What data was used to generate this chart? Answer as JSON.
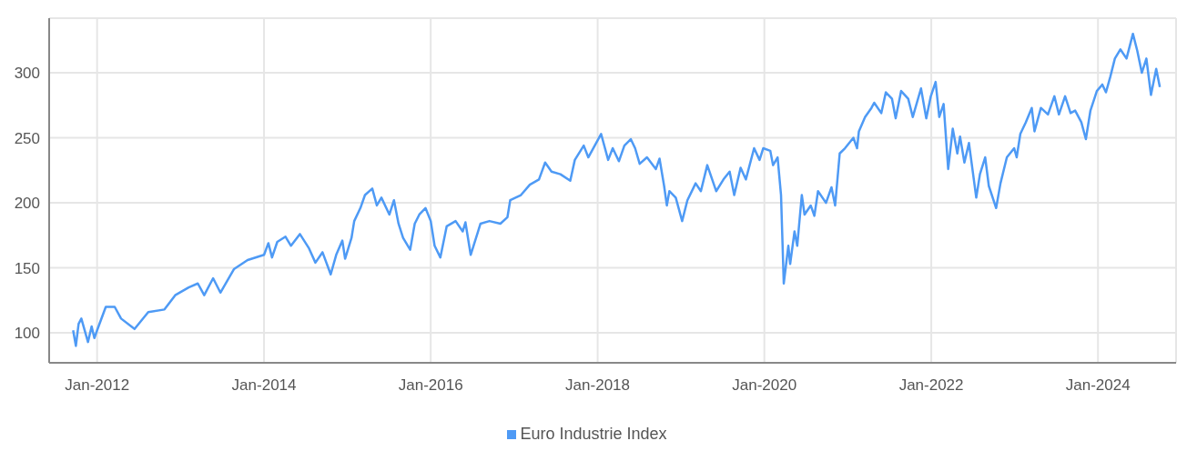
{
  "chart_data": {
    "type": "line",
    "x": [
      "2011-09-18",
      "2011-09-30",
      "2011-10-12",
      "2011-10-24",
      "2011-11-22",
      "2011-12-08",
      "2011-12-20",
      "2012-01-01",
      "2012-02-08",
      "2012-03-18",
      "2012-04-15",
      "2012-06-13",
      "2012-08-12",
      "2012-10-22",
      "2012-12-08",
      "2013-02-05",
      "2013-03-17",
      "2013-04-14",
      "2013-05-23",
      "2013-06-24",
      "2013-08-22",
      "2013-10-21",
      "2014-01-01",
      "2014-01-20",
      "2014-02-05",
      "2014-02-28",
      "2014-04-05",
      "2014-04-29",
      "2014-06-07",
      "2014-07-17",
      "2014-08-14",
      "2014-09-14",
      "2014-10-20",
      "2014-11-13",
      "2014-12-10",
      "2014-12-22",
      "2015-01-19",
      "2015-01-31",
      "2015-02-27",
      "2015-03-19",
      "2015-04-20",
      "2015-05-10",
      "2015-05-30",
      "2015-07-04",
      "2015-07-24",
      "2015-08-13",
      "2015-09-02",
      "2015-10-03",
      "2015-10-23",
      "2015-11-12",
      "2015-12-09",
      "2016-01-01",
      "2016-01-18",
      "2016-02-12",
      "2016-03-11",
      "2016-04-19",
      "2016-05-20",
      "2016-06-01",
      "2016-06-24",
      "2016-08-06",
      "2016-09-14",
      "2016-11-01",
      "2016-12-02",
      "2016-12-14",
      "2017-01-30",
      "2017-03-10",
      "2017-04-19",
      "2017-05-16",
      "2017-06-13",
      "2017-07-22",
      "2017-09-03",
      "2017-09-23",
      "2017-11-01",
      "2017-11-21",
      "2018-01-16",
      "2018-02-16",
      "2018-03-08",
      "2018-04-04",
      "2018-04-28",
      "2018-05-26",
      "2018-06-14",
      "2018-07-04",
      "2018-08-05",
      "2018-09-13",
      "2018-09-29",
      "2018-10-19",
      "2018-10-31",
      "2018-11-11",
      "2018-12-09",
      "2019-01-06",
      "2019-01-29",
      "2019-03-06",
      "2019-03-29",
      "2019-04-26",
      "2019-06-04",
      "2019-07-06",
      "2019-08-02",
      "2019-08-22",
      "2019-09-19",
      "2019-10-12",
      "2019-11-17",
      "2019-12-11",
      "2019-12-27",
      "2020-01-27",
      "2020-02-08",
      "2020-02-28",
      "2020-03-14",
      "2020-03-26",
      "2020-04-15",
      "2020-04-23",
      "2020-05-12",
      "2020-05-24",
      "2020-06-13",
      "2020-06-25",
      "2020-07-22",
      "2020-08-07",
      "2020-08-23",
      "2020-09-27",
      "2020-10-21",
      "2020-11-06",
      "2020-11-26",
      "2020-12-19",
      "2021-01-25",
      "2021-02-10",
      "2021-02-18",
      "2021-03-17",
      "2021-04-14",
      "2021-04-26",
      "2021-05-27",
      "2021-06-16",
      "2021-07-13",
      "2021-07-29",
      "2021-08-22",
      "2021-09-22",
      "2021-10-12",
      "2021-11-17",
      "2021-12-10",
      "2021-12-30",
      "2022-01-20",
      "2022-02-05",
      "2022-02-24",
      "2022-03-16",
      "2022-04-05",
      "2022-04-25",
      "2022-05-07",
      "2022-05-26",
      "2022-06-15",
      "2022-07-17",
      "2022-08-02",
      "2022-08-25",
      "2022-09-10",
      "2022-10-12",
      "2022-10-31",
      "2022-11-28",
      "2022-12-30",
      "2023-01-10",
      "2023-01-26",
      "2023-02-19",
      "2023-03-17",
      "2023-03-29",
      "2023-04-26",
      "2023-05-27",
      "2023-06-24",
      "2023-07-14",
      "2023-08-10",
      "2023-09-03",
      "2023-09-23",
      "2023-10-20",
      "2023-11-09",
      "2023-11-29",
      "2023-12-27",
      "2024-01-20",
      "2024-02-05",
      "2024-02-24",
      "2024-03-15",
      "2024-04-08",
      "2024-05-05",
      "2024-06-02",
      "2024-06-21",
      "2024-07-11",
      "2024-07-31",
      "2024-08-20",
      "2024-09-12",
      "2024-09-28"
    ],
    "series": [
      {
        "name": "Euro Industrie Index",
        "color": "#4e9af5",
        "values": [
          102,
          90,
          107,
          111,
          93,
          105,
          96,
          102,
          120,
          120,
          111,
          103,
          116,
          118,
          129,
          135,
          138,
          129,
          142,
          131,
          149,
          156,
          160,
          169,
          158,
          170,
          174,
          167,
          176,
          165,
          154,
          162,
          145,
          160,
          171,
          157,
          173,
          186,
          196,
          206,
          211,
          198,
          204,
          191,
          202,
          184,
          173,
          164,
          184,
          191,
          196,
          186,
          167,
          158,
          182,
          186,
          178,
          185,
          160,
          184,
          186,
          184,
          189,
          202,
          206,
          214,
          218,
          231,
          224,
          222,
          217,
          233,
          244,
          235,
          253,
          233,
          242,
          232,
          244,
          249,
          242,
          230,
          235,
          226,
          234,
          213,
          198,
          209,
          204,
          186,
          202,
          215,
          209,
          229,
          209,
          218,
          224,
          206,
          227,
          218,
          242,
          233,
          242,
          240,
          229,
          235,
          206,
          138,
          167,
          153,
          178,
          167,
          206,
          191,
          198,
          190,
          209,
          200,
          212,
          198,
          238,
          242,
          250,
          242,
          255,
          266,
          273,
          277,
          269,
          285,
          280,
          265,
          286,
          280,
          266,
          288,
          265,
          282,
          293,
          266,
          276,
          226,
          257,
          238,
          251,
          231,
          246,
          204,
          222,
          235,
          213,
          196,
          215,
          235,
          242,
          235,
          253,
          262,
          273,
          255,
          273,
          268,
          282,
          268,
          282,
          269,
          271,
          262,
          249,
          271,
          286,
          291,
          285,
          297,
          311,
          318,
          311,
          330,
          317,
          300,
          311,
          283,
          303,
          289
        ]
      }
    ],
    "xlim": [
      "2011-06-05",
      "2024-12-08"
    ],
    "xticks": [
      {
        "value": "2012-01-01",
        "label": "Jan-2012"
      },
      {
        "value": "2014-01-01",
        "label": "Jan-2014"
      },
      {
        "value": "2016-01-01",
        "label": "Jan-2016"
      },
      {
        "value": "2018-01-01",
        "label": "Jan-2018"
      },
      {
        "value": "2020-01-01",
        "label": "Jan-2020"
      },
      {
        "value": "2022-01-01",
        "label": "Jan-2022"
      },
      {
        "value": "2024-01-01",
        "label": "Jan-2024"
      }
    ],
    "ylim": [
      77,
      342
    ],
    "yticks": [
      100,
      150,
      200,
      250,
      300
    ],
    "grid": true,
    "legend": "bottom",
    "marker": "none",
    "line_style": "solid"
  }
}
